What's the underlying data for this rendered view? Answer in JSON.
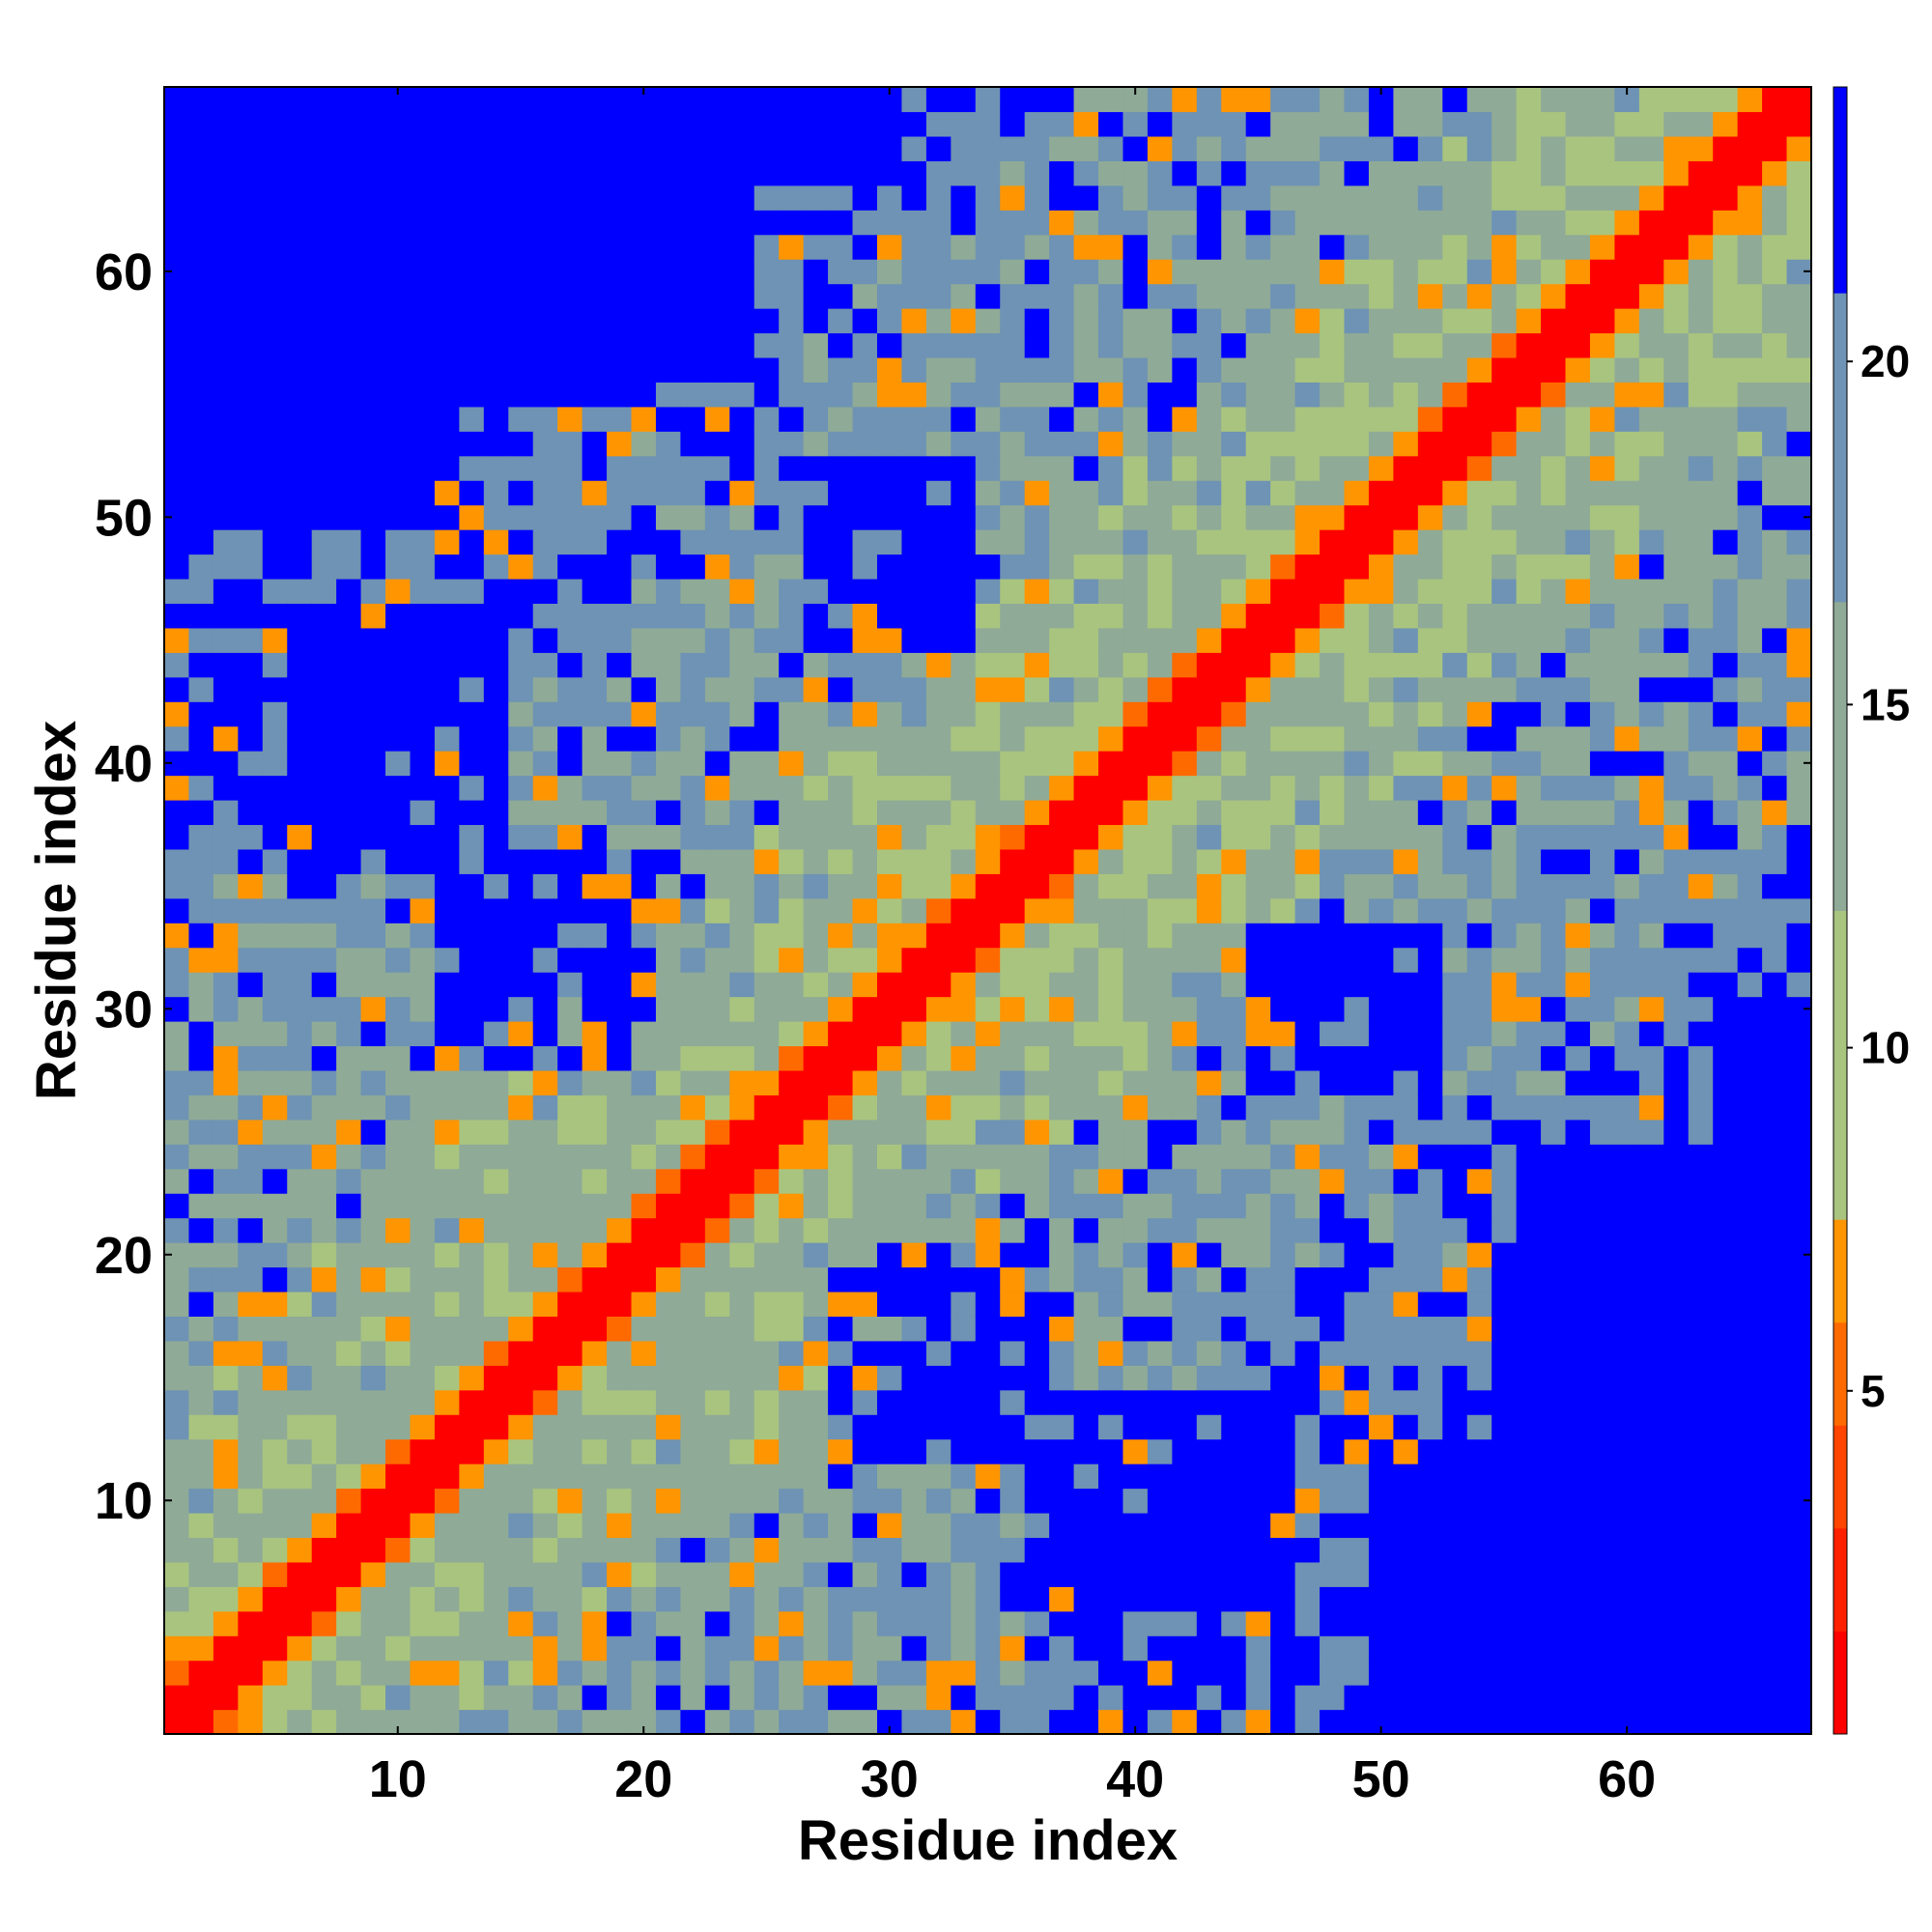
{
  "chart_data": {
    "type": "heatmap",
    "title": "",
    "xlabel": "Residue index",
    "ylabel": "Residue index",
    "n_residues": 67,
    "x_ticks": [
      10,
      20,
      30,
      40,
      50,
      60
    ],
    "y_ticks": [
      10,
      20,
      30,
      40,
      50,
      60
    ],
    "colorbar": {
      "ticks": [
        5,
        10,
        15,
        20
      ],
      "range": [
        0,
        24
      ],
      "levels": [
        {
          "from": 0,
          "to": 1.5,
          "color": "#ff0000"
        },
        {
          "from": 1.5,
          "to": 3,
          "color": "#ff2000"
        },
        {
          "from": 3,
          "to": 4.5,
          "color": "#ff4500"
        },
        {
          "from": 4.5,
          "to": 6,
          "color": "#ff6a00"
        },
        {
          "from": 6,
          "to": 7.5,
          "color": "#ff9500"
        },
        {
          "from": 7.5,
          "to": 12,
          "color": "#a9c47f"
        },
        {
          "from": 12,
          "to": 16.5,
          "color": "#8faa97"
        },
        {
          "from": 16.5,
          "to": 21,
          "color": "#6e93b4"
        },
        {
          "from": 21,
          "to": 24,
          "color": "#0000ff"
        }
      ]
    },
    "matrix_description": "Symmetric residue-residue distance map: red diagonal, orange near-diagonal band, green/blue-grey mid distances, blue for distances beyond the top level (upper-left/lower-right corners and scattered patches)."
  }
}
